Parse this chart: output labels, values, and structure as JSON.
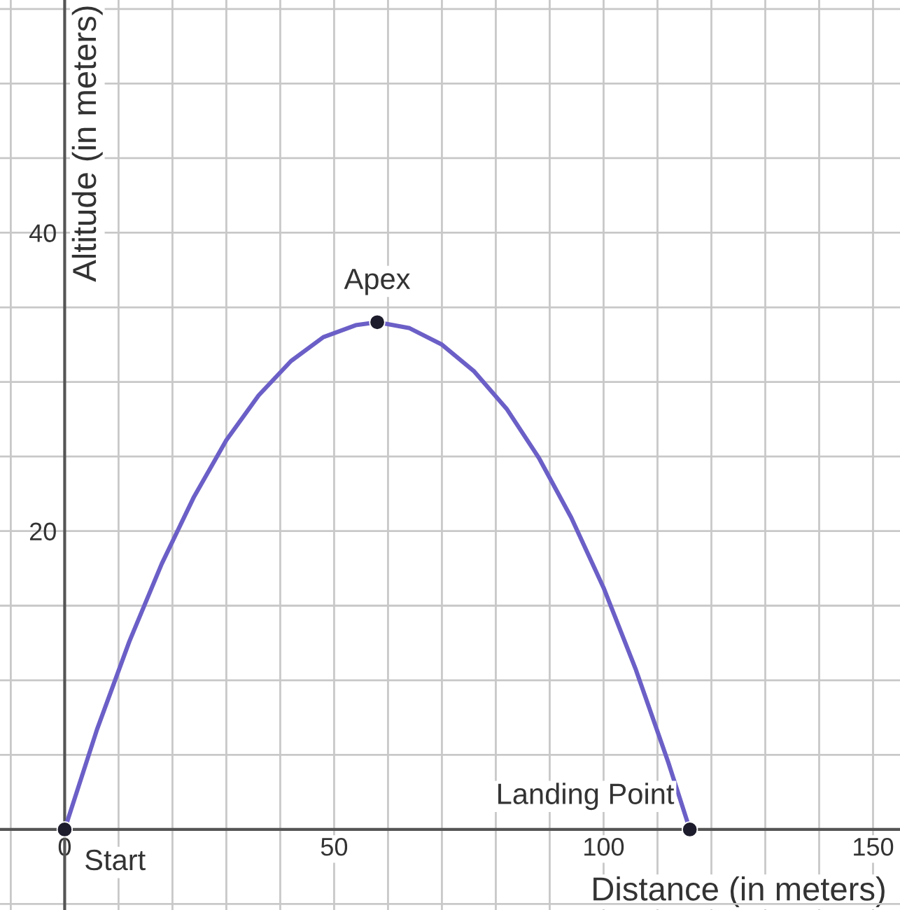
{
  "chart_data": {
    "type": "line",
    "xlabel": "Distance (in meters)",
    "ylabel": "Altitude (in meters)",
    "xlim": [
      -12,
      155
    ],
    "ylim": [
      -5.4,
      55.6
    ],
    "xticks": [
      {
        "value": -10,
        "label": null
      },
      0,
      {
        "value": 10,
        "label": null
      },
      {
        "value": 20,
        "label": null
      },
      {
        "value": 30,
        "label": null
      },
      {
        "value": 40,
        "label": null
      },
      50,
      {
        "value": 60,
        "label": null
      },
      {
        "value": 70,
        "label": null
      },
      {
        "value": 80,
        "label": null
      },
      {
        "value": 90,
        "label": null
      },
      100,
      {
        "value": 110,
        "label": null
      },
      {
        "value": 120,
        "label": null
      },
      {
        "value": 130,
        "label": null
      },
      {
        "value": 140,
        "label": null
      },
      150
    ],
    "yticks": [
      {
        "value": -5,
        "label": null
      },
      {
        "value": 5,
        "label": null
      },
      {
        "value": 10,
        "label": null
      },
      {
        "value": 15,
        "label": null
      },
      20,
      {
        "value": 25,
        "label": null
      },
      {
        "value": 30,
        "label": null
      },
      {
        "value": 35,
        "label": null
      },
      40,
      {
        "value": 45,
        "label": null
      },
      {
        "value": 50,
        "label": null
      },
      {
        "value": 55,
        "label": null
      }
    ],
    "grid": true,
    "series": [
      {
        "color": "#6b5fc7",
        "marker": "none",
        "line_style": "solid",
        "x": [
          0,
          6,
          12,
          18,
          24,
          30,
          36,
          42,
          48,
          54,
          58,
          64,
          70,
          76,
          82,
          88,
          94,
          100,
          106,
          112,
          116
        ],
        "values": [
          0,
          6.7,
          12.6,
          17.8,
          22.3,
          26.1,
          29.1,
          31.4,
          33.0,
          33.8,
          34,
          33.6,
          32.5,
          30.7,
          28.2,
          24.9,
          20.9,
          16.2,
          10.7,
          4.5,
          0
        ]
      },
      {
        "type": "scatter",
        "color": "#1c1c2c",
        "marker": "circle",
        "x": [
          0,
          58,
          116
        ],
        "values": [
          0,
          34,
          0
        ]
      }
    ],
    "annotations": [
      {
        "text": "Start",
        "x": 0,
        "y": 0
      },
      {
        "text": "Apex",
        "x": 58,
        "y": 34
      },
      {
        "text": "Landing Point",
        "x": 116,
        "y": 0
      }
    ]
  }
}
